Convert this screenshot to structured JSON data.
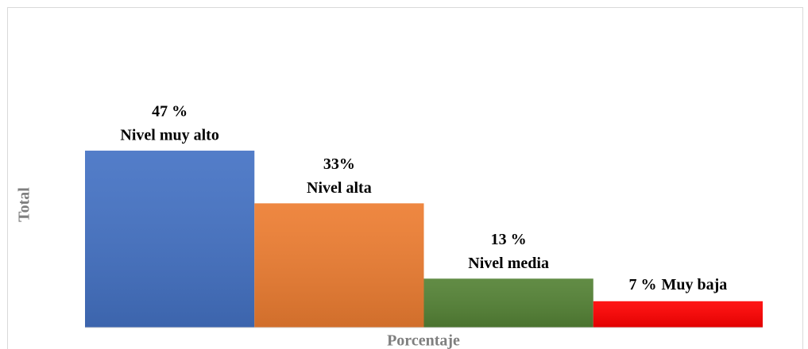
{
  "chart_data": {
    "type": "bar",
    "x_label": "Porcentaje",
    "y_label": "Total",
    "categories": [
      "Nivel muy alto",
      "Nivel alta",
      "Nivel media",
      "Muy baja"
    ],
    "values": [
      47,
      33,
      13,
      7
    ],
    "value_labels": [
      "47 %",
      "33%",
      "13 %",
      "7 %"
    ],
    "colors": [
      "#4472c4",
      "#ed7d31",
      "#548235",
      "#ff0000"
    ],
    "ylim": [
      0,
      75
    ]
  }
}
